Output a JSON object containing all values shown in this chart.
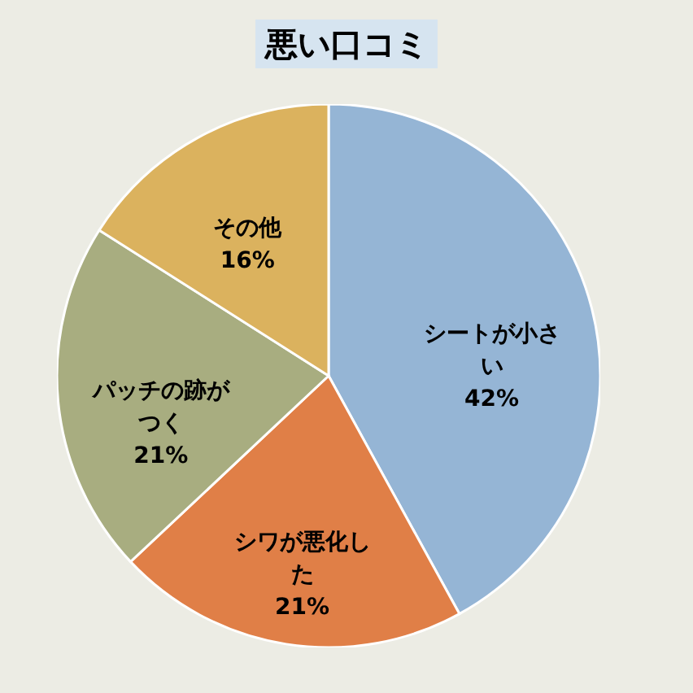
{
  "chart_data": {
    "type": "pie",
    "title": "悪い口コミ",
    "categories": [
      "シートが小さい",
      "シワが悪化した",
      "パッチの跡がつく",
      "その他"
    ],
    "values": [
      42,
      21,
      21,
      16
    ],
    "value_labels": [
      "42%",
      "21%",
      "21%",
      "16%"
    ],
    "colors": [
      "#95b5d5",
      "#e07f47",
      "#a8ad80",
      "#dbb25e"
    ]
  }
}
